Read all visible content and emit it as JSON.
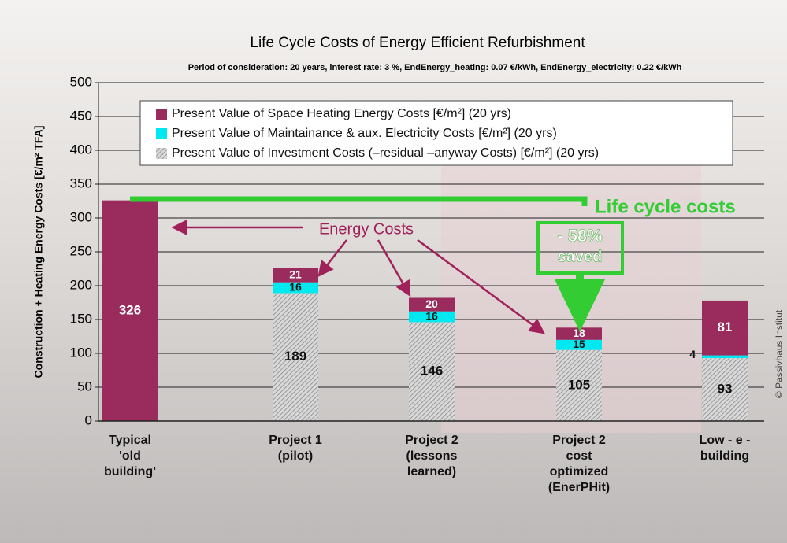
{
  "chart_data": {
    "type": "stacked_bar",
    "title": "Life Cycle Costs of Energy Efficient Refurbishment",
    "subtitle": "Period of consideration: 20 years, interest rate: 3 %,  EndEnergy_heating: 0.07 €/kWh, EndEnergy_electricity: 0.22 €/kWh",
    "y_label": "Construction + Heating Energy Costs [€/m² TFA]",
    "categories": [
      [
        "Typical",
        "'old",
        "building'"
      ],
      [
        "Project 1",
        "(pilot)"
      ],
      [
        "Project 2",
        "(lessons",
        "learned)"
      ],
      [
        "Project 2",
        "cost",
        "optimized",
        "(EnerPHit)"
      ],
      [
        "Low - e -",
        "building"
      ]
    ],
    "series": [
      {
        "name": "Present Value of Investment Costs (–residual –anyway Costs) [€/m²]  (20 yrs)",
        "color": "#a8a8a8",
        "values": [
          null,
          189,
          146,
          105,
          93
        ]
      },
      {
        "name": "Present Value of Maintainance & aux. Electricity  Costs [€/m²]   (20 yrs)",
        "color": "#00e8f0",
        "values": [
          null,
          16,
          16,
          15,
          4
        ]
      },
      {
        "name": "Present Value of Space Heating Energy Costs [€/m²]  (20 yrs)",
        "color": "#9a2b5d",
        "values": [
          326,
          21,
          20,
          18,
          81
        ]
      }
    ],
    "ylim": [
      0,
      500
    ],
    "yticks": [
      0,
      50,
      100,
      150,
      200,
      250,
      300,
      350,
      400,
      450,
      500
    ],
    "grid": true,
    "annotations": {
      "energy_costs": "Energy Costs",
      "life_cycle": "Life cycle costs",
      "saving": "- 58%",
      "saved": "saved",
      "copyright": "© Passivhaus Institut"
    }
  }
}
